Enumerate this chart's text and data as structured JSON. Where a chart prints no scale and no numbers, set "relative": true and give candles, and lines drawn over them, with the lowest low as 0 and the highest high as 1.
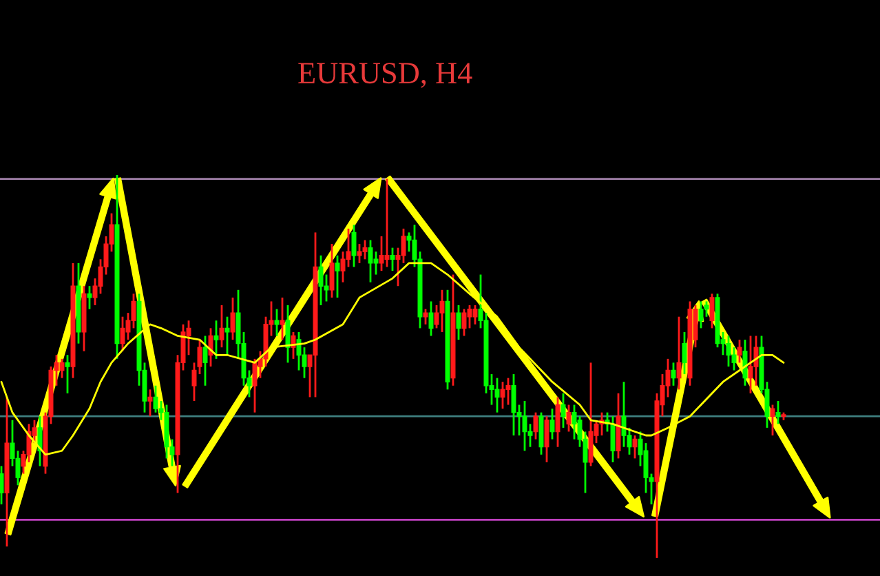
{
  "chart_data": {
    "type": "candlestick",
    "title": "EURUSD, H4",
    "relative": true,
    "grid": false,
    "legend": false,
    "categories": [
      null,
      null,
      null,
      null,
      null,
      null,
      null,
      null,
      null,
      null,
      null,
      null,
      null,
      null,
      null,
      null,
      null,
      null,
      null,
      null,
      null,
      null,
      null,
      null,
      null,
      null,
      null,
      null,
      null,
      null,
      null,
      null,
      null,
      null,
      null,
      null,
      null,
      null,
      null,
      null,
      null,
      null,
      null,
      null,
      null,
      null,
      null,
      null,
      null,
      null,
      null,
      null,
      null,
      null,
      null,
      null,
      null,
      null,
      null,
      null,
      null,
      null,
      null,
      null,
      null,
      null,
      null,
      null,
      null,
      null,
      null,
      null,
      null,
      null,
      null,
      null,
      null,
      null,
      null,
      null,
      null,
      null,
      null,
      null,
      null,
      null,
      null,
      null,
      null,
      null,
      null,
      null,
      null,
      null,
      null,
      null,
      null,
      null,
      null,
      null,
      null,
      null,
      null,
      null,
      null,
      null,
      null,
      null,
      null,
      null,
      null,
      null,
      null,
      null,
      null,
      null,
      null,
      null,
      null,
      null,
      null,
      null,
      null,
      null,
      null,
      null,
      null,
      null,
      null,
      null,
      null,
      null,
      null,
      null,
      null,
      null,
      null,
      null,
      null,
      null,
      null,
      null,
      null,
      null,
      null,
      null,
      null,
      null,
      null,
      null,
      null,
      null,
      null,
      null,
      null,
      null,
      null,
      null,
      null,
      null
    ],
    "ohlc": [
      [
        0.22,
        0.24,
        0.14,
        0.17
      ],
      [
        0.17,
        0.42,
        0.03,
        0.3
      ],
      [
        0.3,
        0.36,
        0.24,
        0.26
      ],
      [
        0.26,
        0.28,
        0.19,
        0.21
      ],
      [
        0.24,
        0.28,
        0.22,
        0.27
      ],
      [
        0.27,
        0.35,
        0.25,
        0.33
      ],
      [
        0.32,
        0.36,
        0.3,
        0.34
      ],
      [
        0.34,
        0.37,
        0.24,
        0.28
      ],
      [
        0.24,
        0.38,
        0.22,
        0.37
      ],
      [
        0.37,
        0.5,
        0.35,
        0.49
      ],
      [
        0.49,
        0.53,
        0.45,
        0.51
      ],
      [
        0.49,
        0.52,
        0.47,
        0.51
      ],
      [
        0.51,
        0.53,
        0.43,
        0.5
      ],
      [
        0.5,
        0.77,
        0.47,
        0.71
      ],
      [
        0.71,
        0.77,
        0.56,
        0.59
      ],
      [
        0.59,
        0.71,
        0.54,
        0.69
      ],
      [
        0.69,
        0.71,
        0.65,
        0.68
      ],
      [
        0.68,
        0.73,
        0.66,
        0.71
      ],
      [
        0.71,
        0.78,
        0.69,
        0.76
      ],
      [
        0.76,
        0.84,
        0.74,
        0.82
      ],
      [
        0.82,
        0.9,
        0.8,
        0.87
      ],
      [
        0.87,
        1.0,
        0.52,
        0.56
      ],
      [
        0.56,
        0.63,
        0.54,
        0.6
      ],
      [
        0.59,
        0.64,
        0.57,
        0.62
      ],
      [
        0.62,
        0.69,
        0.6,
        0.67
      ],
      [
        0.67,
        0.69,
        0.45,
        0.49
      ],
      [
        0.49,
        0.51,
        0.38,
        0.41
      ],
      [
        0.41,
        0.44,
        0.37,
        0.42
      ],
      [
        0.42,
        0.45,
        0.38,
        0.39
      ],
      [
        0.39,
        0.41,
        0.36,
        0.38
      ],
      [
        0.38,
        0.4,
        0.26,
        0.29
      ],
      [
        0.29,
        0.31,
        0.24,
        0.27
      ],
      [
        0.27,
        0.53,
        0.17,
        0.51
      ],
      [
        0.51,
        0.61,
        0.49,
        0.59
      ],
      [
        0.58,
        0.62,
        0.53,
        0.6
      ],
      [
        0.45,
        0.51,
        0.41,
        0.49
      ],
      [
        0.5,
        0.57,
        0.48,
        0.55
      ],
      [
        0.55,
        0.58,
        0.45,
        0.51
      ],
      [
        0.53,
        0.6,
        0.5,
        0.58
      ],
      [
        0.58,
        0.62,
        0.52,
        0.57
      ],
      [
        0.57,
        0.66,
        0.55,
        0.6
      ],
      [
        0.6,
        0.63,
        0.53,
        0.59
      ],
      [
        0.59,
        0.68,
        0.57,
        0.64
      ],
      [
        0.64,
        0.7,
        0.52,
        0.56
      ],
      [
        0.56,
        0.59,
        0.45,
        0.47
      ],
      [
        0.47,
        0.49,
        0.42,
        0.45
      ],
      [
        0.45,
        0.52,
        0.38,
        0.51
      ],
      [
        0.5,
        0.54,
        0.47,
        0.52
      ],
      [
        0.52,
        0.63,
        0.5,
        0.61
      ],
      [
        0.61,
        0.67,
        0.58,
        0.62
      ],
      [
        0.62,
        0.65,
        0.58,
        0.61
      ],
      [
        0.61,
        0.68,
        0.57,
        0.62
      ],
      [
        0.62,
        0.66,
        0.51,
        0.55
      ],
      [
        0.55,
        0.59,
        0.52,
        0.58
      ],
      [
        0.57,
        0.59,
        0.49,
        0.53
      ],
      [
        0.53,
        0.55,
        0.47,
        0.5
      ],
      [
        0.5,
        0.53,
        0.42,
        0.53
      ],
      [
        0.53,
        0.85,
        0.42,
        0.76
      ],
      [
        0.76,
        0.79,
        0.66,
        0.71
      ],
      [
        0.71,
        0.74,
        0.67,
        0.7
      ],
      [
        0.7,
        0.82,
        0.68,
        0.77
      ],
      [
        0.77,
        0.79,
        0.68,
        0.75
      ],
      [
        0.75,
        0.8,
        0.72,
        0.78
      ],
      [
        0.78,
        0.86,
        0.76,
        0.8
      ],
      [
        0.85,
        0.87,
        0.76,
        0.79
      ],
      [
        0.79,
        0.82,
        0.77,
        0.8
      ],
      [
        0.8,
        0.83,
        0.78,
        0.81
      ],
      [
        0.81,
        0.83,
        0.72,
        0.77
      ],
      [
        0.78,
        0.8,
        0.74,
        0.77
      ],
      [
        0.77,
        0.84,
        0.75,
        0.79
      ],
      [
        0.78,
        0.99,
        0.76,
        0.79
      ],
      [
        0.79,
        0.81,
        0.75,
        0.78
      ],
      [
        0.78,
        0.81,
        0.71,
        0.79
      ],
      [
        0.79,
        0.86,
        0.77,
        0.84
      ],
      [
        0.84,
        0.85,
        0.8,
        0.83
      ],
      [
        0.83,
        0.87,
        0.76,
        0.78
      ],
      [
        0.78,
        0.8,
        0.6,
        0.63
      ],
      [
        0.63,
        0.65,
        0.61,
        0.64
      ],
      [
        0.64,
        0.67,
        0.58,
        0.6
      ],
      [
        0.61,
        0.66,
        0.6,
        0.64
      ],
      [
        0.64,
        0.7,
        0.59,
        0.67
      ],
      [
        0.67,
        0.7,
        0.44,
        0.46
      ],
      [
        0.47,
        0.74,
        0.45,
        0.64
      ],
      [
        0.64,
        0.66,
        0.57,
        0.6
      ],
      [
        0.6,
        0.65,
        0.58,
        0.64
      ],
      [
        0.63,
        0.66,
        0.6,
        0.65
      ],
      [
        0.63,
        0.66,
        0.61,
        0.65
      ],
      [
        0.65,
        0.74,
        0.6,
        0.62
      ],
      [
        0.62,
        0.64,
        0.43,
        0.45
      ],
      [
        0.45,
        0.48,
        0.4,
        0.44
      ],
      [
        0.44,
        0.47,
        0.38,
        0.42
      ],
      [
        0.42,
        0.46,
        0.39,
        0.44
      ],
      [
        0.44,
        0.47,
        0.4,
        0.45
      ],
      [
        0.45,
        0.48,
        0.32,
        0.38
      ],
      [
        0.38,
        0.4,
        0.32,
        0.37
      ],
      [
        0.37,
        0.41,
        0.28,
        0.33
      ],
      [
        0.33,
        0.35,
        0.29,
        0.32
      ],
      [
        0.33,
        0.38,
        0.31,
        0.37
      ],
      [
        0.37,
        0.38,
        0.27,
        0.29
      ],
      [
        0.29,
        0.37,
        0.25,
        0.36
      ],
      [
        0.36,
        0.39,
        0.31,
        0.33
      ],
      [
        0.33,
        0.42,
        0.29,
        0.4
      ],
      [
        0.4,
        0.43,
        0.34,
        0.37
      ],
      [
        0.35,
        0.4,
        0.33,
        0.38
      ],
      [
        0.38,
        0.4,
        0.31,
        0.35
      ],
      [
        0.36,
        0.37,
        0.29,
        0.31
      ],
      [
        0.31,
        0.33,
        0.17,
        0.25
      ],
      [
        0.25,
        0.51,
        0.24,
        0.33
      ],
      [
        0.32,
        0.36,
        0.3,
        0.35
      ],
      [
        0.35,
        0.38,
        0.32,
        0.36
      ],
      [
        0.36,
        0.38,
        0.33,
        0.35
      ],
      [
        0.35,
        0.37,
        0.25,
        0.28
      ],
      [
        0.28,
        0.43,
        0.26,
        0.37
      ],
      [
        0.37,
        0.46,
        0.29,
        0.32
      ],
      [
        0.32,
        0.34,
        0.27,
        0.29
      ],
      [
        0.29,
        0.32,
        0.26,
        0.31
      ],
      [
        0.31,
        0.33,
        0.24,
        0.27
      ],
      [
        0.28,
        0.3,
        0.17,
        0.21
      ],
      [
        0.21,
        0.22,
        0.14,
        0.2
      ],
      [
        0.2,
        0.43,
        0.0,
        0.41
      ],
      [
        0.4,
        0.48,
        0.37,
        0.45
      ],
      [
        0.45,
        0.52,
        0.42,
        0.49
      ],
      [
        0.49,
        0.51,
        0.45,
        0.47
      ],
      [
        0.47,
        0.63,
        0.44,
        0.51
      ],
      [
        0.56,
        0.59,
        0.48,
        0.51
      ],
      [
        0.47,
        0.67,
        0.45,
        0.65
      ],
      [
        0.57,
        0.66,
        0.55,
        0.65
      ],
      [
        0.65,
        0.67,
        0.6,
        0.62
      ],
      [
        0.66,
        0.67,
        0.63,
        0.65
      ],
      [
        0.62,
        0.69,
        0.6,
        0.68
      ],
      [
        0.68,
        0.69,
        0.55,
        0.56
      ],
      [
        0.57,
        0.59,
        0.53,
        0.56
      ],
      [
        0.56,
        0.58,
        0.5,
        0.53
      ],
      [
        0.53,
        0.55,
        0.49,
        0.51
      ],
      [
        0.53,
        0.57,
        0.51,
        0.55
      ],
      [
        0.54,
        0.57,
        0.45,
        0.47
      ],
      [
        0.47,
        0.58,
        0.43,
        0.5
      ],
      [
        0.5,
        0.58,
        0.45,
        0.55
      ],
      [
        0.55,
        0.58,
        0.43,
        0.44
      ],
      [
        0.44,
        0.46,
        0.34,
        0.37
      ],
      [
        0.37,
        0.4,
        0.32,
        0.39
      ],
      [
        0.38,
        0.41,
        0.35,
        0.37
      ],
      [
        0.37,
        0.38,
        0.36,
        0.37
      ],
      null,
      null,
      null,
      null,
      null,
      null,
      null,
      null,
      null,
      null,
      null,
      null,
      null,
      null,
      null,
      null,
      null
    ],
    "series": [
      {
        "type": "line",
        "color": "#ffff00",
        "values": [
          0.46,
          null,
          0.38,
          null,
          null,
          0.32,
          null,
          null,
          0.27,
          null,
          null,
          0.28,
          null,
          0.32,
          null,
          null,
          0.39,
          null,
          0.46,
          null,
          0.51,
          null,
          null,
          0.56,
          null,
          null,
          null,
          0.61,
          null,
          0.6,
          null,
          null,
          0.58,
          null,
          null,
          null,
          0.57,
          null,
          null,
          0.53,
          null,
          0.53,
          null,
          null,
          null,
          null,
          0.51,
          null,
          null,
          0.55,
          null,
          null,
          null,
          null,
          null,
          0.56,
          null,
          0.57,
          null,
          null,
          null,
          null,
          0.61,
          null,
          null,
          0.68,
          null,
          null,
          null,
          null,
          null,
          0.73,
          null,
          null,
          0.77,
          null,
          null,
          0.77,
          0.77,
          null,
          null,
          0.74,
          null,
          null,
          null,
          0.69,
          null,
          null,
          null,
          null,
          0.63,
          null,
          null,
          null,
          0.55,
          null,
          null,
          null,
          null,
          null,
          0.46,
          null,
          null,
          null,
          null,
          0.4,
          null,
          0.36,
          null,
          null,
          null,
          0.35,
          null,
          null,
          null,
          0.33,
          null,
          0.32,
          0.32,
          null,
          null,
          0.34,
          null,
          null,
          null,
          0.37,
          null,
          null,
          null,
          null,
          null,
          0.46,
          null,
          null,
          0.49,
          null,
          null,
          null,
          0.53,
          null,
          0.53,
          null,
          0.51,
          null,
          null,
          null,
          null,
          null,
          null,
          null,
          null,
          null,
          null,
          null,
          null,
          null,
          null,
          null,
          null,
          null
        ]
      }
    ],
    "ref_lines": [
      {
        "axis": "y",
        "value": 0.99,
        "color": "#a080a8"
      },
      {
        "axis": "y",
        "value": 0.37,
        "color": "#3f8080"
      },
      {
        "axis": "y",
        "value": 0.1,
        "color": "#c040c0"
      }
    ]
  }
}
